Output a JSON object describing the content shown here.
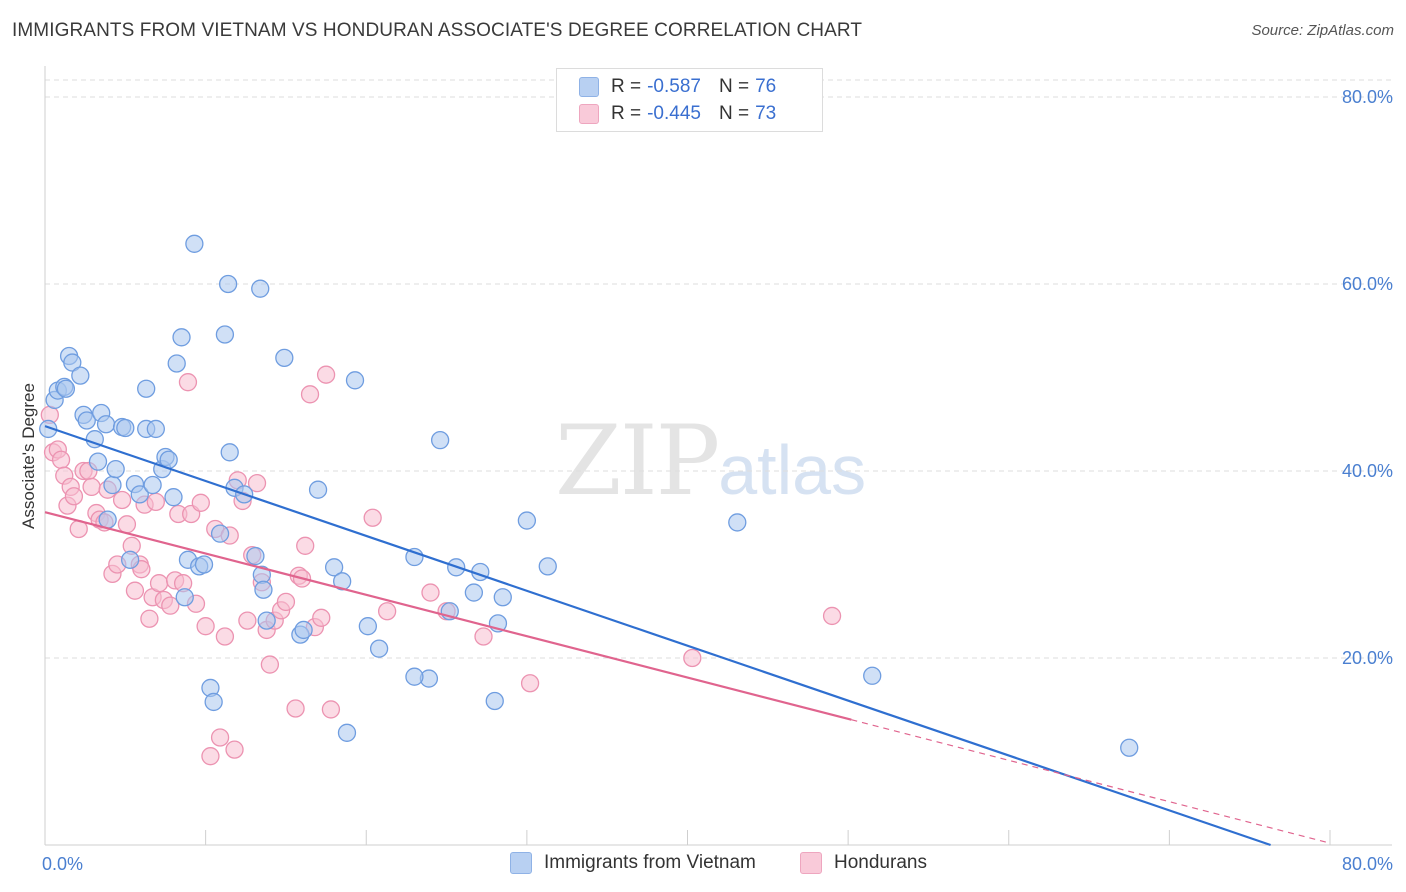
{
  "title": "IMMIGRANTS FROM VIETNAM VS HONDURAN ASSOCIATE'S DEGREE CORRELATION CHART",
  "source": "Source: ZipAtlas.com",
  "watermark": {
    "zip": "ZIP",
    "atlas": "atlas"
  },
  "legend": {
    "rows": [
      {
        "r_label": "R =",
        "r_value": "-0.587",
        "n_label": "N =",
        "n_value": "76"
      },
      {
        "r_label": "R =",
        "r_value": "-0.445",
        "n_label": "N =",
        "n_value": "73"
      }
    ]
  },
  "bottom_legend": [
    "Immigrants from Vietnam",
    "Hondurans"
  ],
  "colors": {
    "blue_fill": "#a9c6ee",
    "blue_stroke": "#6f9de0",
    "blue_line": "#2f6fd0",
    "pink_fill": "#f7bdd0",
    "pink_stroke": "#ec93b1",
    "pink_line": "#e0648e",
    "axis_text": "#4a7fd0",
    "grid": "#dedede"
  },
  "chart_data": {
    "type": "scatter",
    "title": "IMMIGRANTS FROM VIETNAM VS HONDURAN ASSOCIATE'S DEGREE CORRELATION CHART",
    "xlabel": "",
    "ylabel": "Associate's Degree",
    "xlim": [
      0,
      80
    ],
    "ylim": [
      0,
      80
    ],
    "x_tick_labels": [
      "0.0%",
      "80.0%"
    ],
    "y_ticks": [
      20,
      40,
      60,
      80
    ],
    "y_tick_labels": [
      "20.0%",
      "40.0%",
      "60.0%",
      "80.0%"
    ],
    "grid": true,
    "series": [
      {
        "name": "Immigrants from Vietnam",
        "r": -0.587,
        "n": 76,
        "trend": {
          "x": [
            0,
            76.3
          ],
          "y": [
            44.8,
            0
          ]
        },
        "points": [
          [
            0.2,
            44.5
          ],
          [
            0.6,
            47.6
          ],
          [
            0.8,
            48.6
          ],
          [
            1.2,
            49.0
          ],
          [
            1.3,
            48.8
          ],
          [
            1.5,
            52.3
          ],
          [
            1.7,
            51.6
          ],
          [
            2.2,
            50.2
          ],
          [
            2.4,
            46.0
          ],
          [
            2.6,
            45.4
          ],
          [
            3.1,
            43.4
          ],
          [
            3.3,
            41.0
          ],
          [
            3.5,
            46.2
          ],
          [
            3.8,
            45.0
          ],
          [
            3.9,
            34.8
          ],
          [
            4.2,
            38.5
          ],
          [
            4.4,
            40.2
          ],
          [
            4.8,
            44.7
          ],
          [
            5.0,
            44.6
          ],
          [
            5.3,
            30.5
          ],
          [
            5.6,
            38.6
          ],
          [
            5.9,
            37.5
          ],
          [
            6.3,
            48.8
          ],
          [
            6.3,
            44.5
          ],
          [
            6.7,
            38.5
          ],
          [
            6.9,
            44.5
          ],
          [
            7.3,
            40.2
          ],
          [
            7.5,
            41.5
          ],
          [
            7.7,
            41.2
          ],
          [
            8.0,
            37.2
          ],
          [
            8.2,
            51.5
          ],
          [
            8.5,
            54.3
          ],
          [
            8.7,
            26.5
          ],
          [
            8.9,
            30.5
          ],
          [
            9.3,
            64.3
          ],
          [
            9.6,
            29.8
          ],
          [
            9.9,
            30.0
          ],
          [
            10.3,
            16.8
          ],
          [
            10.5,
            15.3
          ],
          [
            10.9,
            33.3
          ],
          [
            11.2,
            54.6
          ],
          [
            11.4,
            60.0
          ],
          [
            11.5,
            42.0
          ],
          [
            11.8,
            38.2
          ],
          [
            12.4,
            37.5
          ],
          [
            13.1,
            30.9
          ],
          [
            13.4,
            59.5
          ],
          [
            13.5,
            28.9
          ],
          [
            13.6,
            27.3
          ],
          [
            13.8,
            24.0
          ],
          [
            14.9,
            52.1
          ],
          [
            15.9,
            22.5
          ],
          [
            16.1,
            23.0
          ],
          [
            17.0,
            38.0
          ],
          [
            18.0,
            29.7
          ],
          [
            18.5,
            28.2
          ],
          [
            18.8,
            12.0
          ],
          [
            19.3,
            49.7
          ],
          [
            20.1,
            23.4
          ],
          [
            20.8,
            21.0
          ],
          [
            23.0,
            30.8
          ],
          [
            23.9,
            17.8
          ],
          [
            24.6,
            43.3
          ],
          [
            25.2,
            25.0
          ],
          [
            25.6,
            29.7
          ],
          [
            26.7,
            27.0
          ],
          [
            27.1,
            29.2
          ],
          [
            28.0,
            15.4
          ],
          [
            28.2,
            23.7
          ],
          [
            28.5,
            26.5
          ],
          [
            30.0,
            34.7
          ],
          [
            31.3,
            29.8
          ],
          [
            43.1,
            34.5
          ],
          [
            51.5,
            18.1
          ],
          [
            67.5,
            10.4
          ],
          [
            23.0,
            18.0
          ]
        ]
      },
      {
        "name": "Hondurans",
        "r": -0.445,
        "n": 73,
        "trend": {
          "x": [
            0,
            50.2
          ],
          "y": [
            35.6,
            13.4
          ]
        },
        "trend_dash": {
          "x": [
            50.2,
            80
          ],
          "y": [
            13.4,
            0.2
          ]
        },
        "points": [
          [
            0.3,
            46.0
          ],
          [
            0.5,
            42.0
          ],
          [
            0.8,
            42.3
          ],
          [
            1.0,
            41.2
          ],
          [
            1.2,
            39.5
          ],
          [
            1.4,
            36.3
          ],
          [
            1.6,
            38.3
          ],
          [
            1.8,
            37.3
          ],
          [
            2.1,
            33.8
          ],
          [
            2.4,
            40.0
          ],
          [
            2.7,
            40.0
          ],
          [
            2.9,
            38.3
          ],
          [
            3.2,
            35.5
          ],
          [
            3.4,
            34.8
          ],
          [
            3.7,
            34.5
          ],
          [
            3.9,
            38.0
          ],
          [
            4.2,
            29.0
          ],
          [
            4.5,
            30.0
          ],
          [
            4.8,
            36.9
          ],
          [
            5.1,
            34.3
          ],
          [
            5.4,
            32.0
          ],
          [
            5.6,
            27.2
          ],
          [
            5.9,
            30.0
          ],
          [
            6.2,
            36.4
          ],
          [
            6.5,
            24.2
          ],
          [
            6.7,
            26.5
          ],
          [
            6.9,
            36.7
          ],
          [
            7.1,
            28.0
          ],
          [
            7.4,
            26.2
          ],
          [
            7.8,
            25.6
          ],
          [
            8.1,
            28.3
          ],
          [
            8.3,
            35.4
          ],
          [
            8.6,
            28.0
          ],
          [
            8.9,
            49.5
          ],
          [
            9.1,
            35.4
          ],
          [
            9.4,
            25.8
          ],
          [
            9.7,
            36.6
          ],
          [
            10.0,
            23.4
          ],
          [
            10.3,
            9.5
          ],
          [
            10.6,
            33.8
          ],
          [
            10.9,
            11.5
          ],
          [
            11.2,
            22.3
          ],
          [
            11.5,
            33.1
          ],
          [
            11.8,
            10.2
          ],
          [
            12.0,
            39.0
          ],
          [
            12.3,
            36.8
          ],
          [
            12.6,
            24.0
          ],
          [
            12.9,
            31.0
          ],
          [
            13.2,
            38.7
          ],
          [
            13.5,
            28.1
          ],
          [
            13.8,
            23.0
          ],
          [
            14.0,
            19.3
          ],
          [
            14.3,
            24.0
          ],
          [
            14.7,
            25.1
          ],
          [
            15.0,
            26.0
          ],
          [
            15.6,
            14.6
          ],
          [
            15.8,
            28.8
          ],
          [
            16.2,
            32.0
          ],
          [
            16.5,
            48.2
          ],
          [
            16.8,
            23.3
          ],
          [
            17.2,
            24.3
          ],
          [
            17.5,
            50.3
          ],
          [
            17.8,
            14.5
          ],
          [
            20.4,
            35.0
          ],
          [
            21.3,
            25.0
          ],
          [
            24.0,
            27.0
          ],
          [
            25.0,
            25.0
          ],
          [
            27.3,
            22.3
          ],
          [
            30.2,
            17.3
          ],
          [
            40.3,
            20.0
          ],
          [
            49.0,
            24.5
          ],
          [
            6.0,
            29.5
          ],
          [
            16.0,
            28.5
          ]
        ]
      }
    ]
  }
}
